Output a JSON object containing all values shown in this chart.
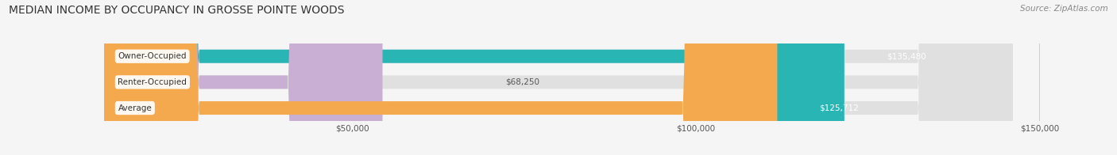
{
  "title": "MEDIAN INCOME BY OCCUPANCY IN GROSSE POINTE WOODS",
  "source": "Source: ZipAtlas.com",
  "categories": [
    "Owner-Occupied",
    "Renter-Occupied",
    "Average"
  ],
  "values": [
    135480,
    68250,
    125712
  ],
  "bar_colors": [
    "#2ab5b5",
    "#c9afd4",
    "#f5a94e"
  ],
  "label_colors": [
    "#ffffff",
    "#555555",
    "#ffffff"
  ],
  "value_labels": [
    "$135,480",
    "$68,250",
    "$125,712"
  ],
  "xlim": [
    0,
    160000
  ],
  "xticks": [
    50000,
    100000,
    150000
  ],
  "xtick_labels": [
    "$50,000",
    "$100,000",
    "$150,000"
  ],
  "background_color": "#f5f5f5",
  "bar_bg_color": "#e0e0e0",
  "title_fontsize": 10,
  "source_fontsize": 7.5,
  "bar_height": 0.52,
  "figsize": [
    14.06,
    1.96
  ]
}
